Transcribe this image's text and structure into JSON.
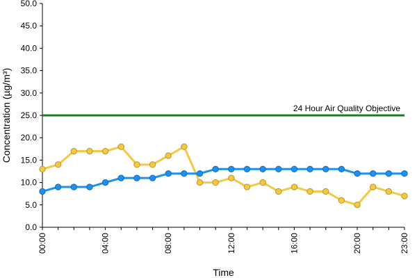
{
  "chart_data": {
    "type": "line",
    "title": "",
    "xlabel": "Time",
    "ylabel": "Concentration (µg/m³)",
    "ylim": [
      0,
      50
    ],
    "yticks": [
      "0.0",
      "5.0",
      "10.0",
      "15.0",
      "20.0",
      "25.0",
      "30.0",
      "35.0",
      "40.0",
      "45.0",
      "50.0"
    ],
    "x": [
      "00:00",
      "01:00",
      "02:00",
      "03:00",
      "04:00",
      "05:00",
      "06:00",
      "07:00",
      "08:00",
      "09:00",
      "10:00",
      "11:00",
      "12:00",
      "13:00",
      "14:00",
      "15:00",
      "16:00",
      "17:00",
      "18:00",
      "19:00",
      "20:00",
      "21:00",
      "22:00",
      "23:00"
    ],
    "xtick_labels": [
      "00:00",
      "04:00",
      "08:00",
      "12:00",
      "16:00",
      "20:00",
      "23:00"
    ],
    "grid": false,
    "legend": "none",
    "series": [
      {
        "color": "#f5c842",
        "values": [
          13,
          14,
          17,
          17,
          17,
          18,
          14,
          14,
          16,
          18,
          10,
          10,
          11,
          9,
          10,
          8,
          9,
          8,
          8,
          6,
          5,
          9,
          8,
          7
        ]
      },
      {
        "color": "#1e90ef",
        "values": [
          8,
          9,
          9,
          9,
          10,
          11,
          11,
          11,
          12,
          12,
          12,
          13,
          13,
          13,
          13,
          13,
          13,
          13,
          13,
          13,
          12,
          12,
          12,
          12
        ]
      }
    ],
    "reference_lines": [
      {
        "label": "24 Hour Air Quality Objective",
        "value": 25,
        "color": "#1a7f1a"
      }
    ]
  }
}
